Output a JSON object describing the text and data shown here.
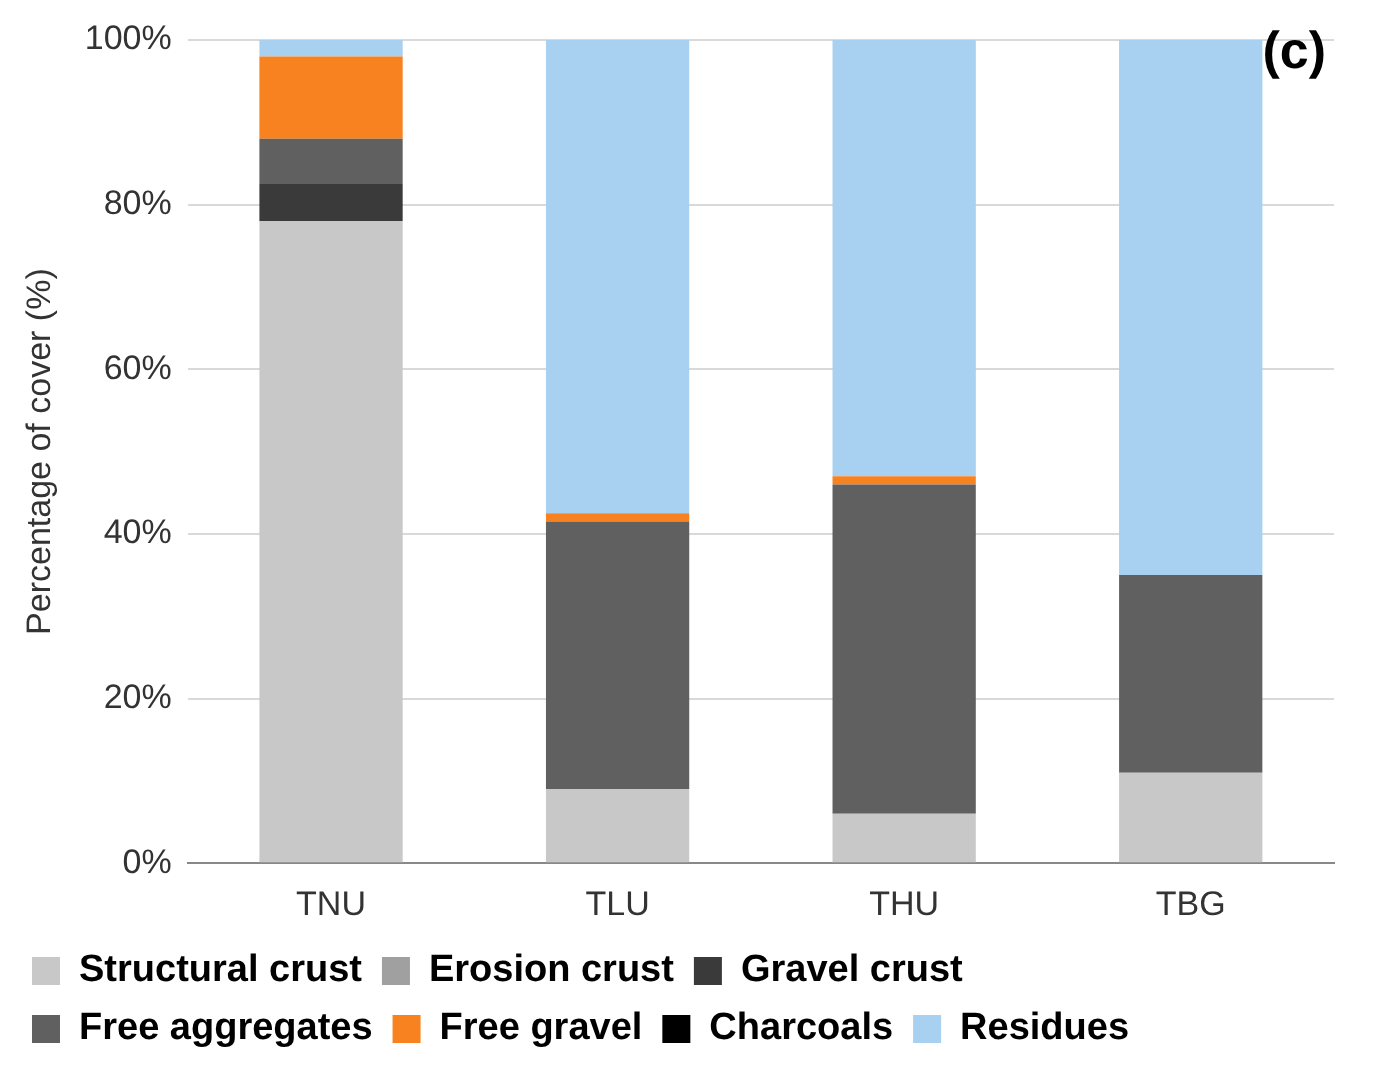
{
  "chart_data": {
    "type": "bar",
    "stacked": true,
    "ylabel": "Percentage of cover (%)",
    "annotations": [
      "(c)"
    ],
    "categories": [
      "TNU",
      "TLU",
      "THU",
      "TBG"
    ],
    "series": [
      {
        "name": "Structural crust",
        "color": "#c8c8c8",
        "values": [
          78,
          9,
          6,
          11
        ]
      },
      {
        "name": "Erosion crust",
        "color": "#a0a0a0",
        "values": [
          0,
          0,
          0,
          0
        ]
      },
      {
        "name": "Gravel crust",
        "color": "#3a3a3a",
        "values": [
          4.5,
          0,
          0,
          0
        ]
      },
      {
        "name": "Free aggregates",
        "color": "#606060",
        "values": [
          5.5,
          32.5,
          40,
          24
        ]
      },
      {
        "name": "Free gravel",
        "color": "#f7821f",
        "values": [
          10,
          1,
          1,
          0
        ]
      },
      {
        "name": "Charcoals",
        "color": "#000000",
        "values": [
          0,
          0,
          0,
          0
        ]
      },
      {
        "name": "Residues",
        "color": "#a8d0f0",
        "values": [
          2,
          57.5,
          53,
          65
        ]
      }
    ],
    "ylim": [
      0,
      100
    ],
    "yticks": [
      {
        "value": 0,
        "label": "0%"
      },
      {
        "value": 20,
        "label": "20%"
      },
      {
        "value": 40,
        "label": "40%"
      },
      {
        "value": 60,
        "label": "60%"
      },
      {
        "value": 80,
        "label": "80%"
      },
      {
        "value": 100,
        "label": "100%"
      }
    ],
    "grid": "y",
    "legend": "bottom"
  }
}
